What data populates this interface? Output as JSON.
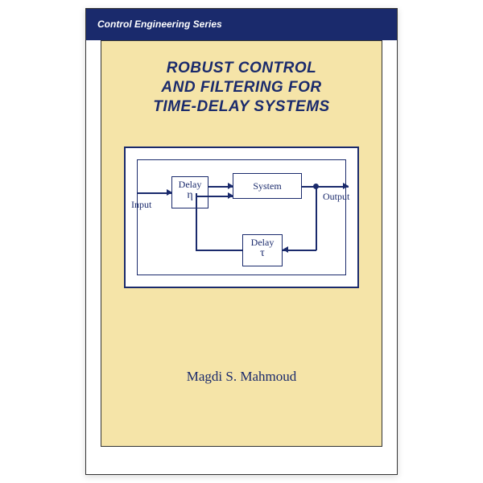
{
  "series": {
    "label": "Control Engineering Series"
  },
  "title": {
    "line1": "ROBUST CONTROL",
    "line2": "AND FILTERING FOR",
    "line3": "TIME-DELAY SYSTEMS"
  },
  "author": "Magdi S. Mahmoud",
  "diagram": {
    "type": "flowchart",
    "input_label": "Input",
    "output_label": "Output",
    "nodes": {
      "delay1": {
        "label": "Delay",
        "symbol": "η"
      },
      "system": {
        "label": "System"
      },
      "delay2": {
        "label": "Delay",
        "symbol": "τ"
      }
    },
    "colors": {
      "line": "#1a2a6c",
      "cover_bg": "#f5e4a8",
      "header_bg": "#1a2a6c",
      "page_bg": "#ffffff"
    },
    "font_family": "Times New Roman",
    "label_fontsize": 12,
    "symbol_fontsize": 14
  },
  "layout": {
    "cover_width": 388,
    "cover_height": 580,
    "title_fontsize": 19,
    "title_color": "#1a2a6c",
    "author_fontsize": 17
  }
}
